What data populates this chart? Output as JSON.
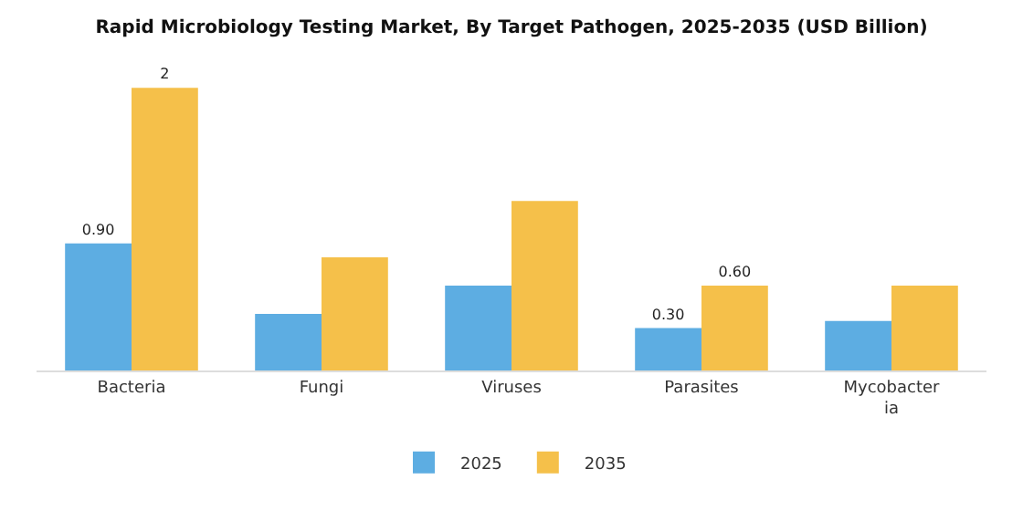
{
  "chart_data": {
    "type": "bar",
    "title": "Rapid Microbiology Testing Market, By Target Pathogen, 2025-2035 (USD Billion)",
    "categories": [
      "Bacteria",
      "Fungi",
      "Viruses",
      "Parasites",
      "Mycobacteria"
    ],
    "series": [
      {
        "name": "2025",
        "color": "#5dade2",
        "values": [
          0.9,
          0.4,
          0.6,
          0.3,
          0.35
        ],
        "value_labels": [
          "0.90",
          null,
          null,
          "0.30",
          null
        ]
      },
      {
        "name": "2035",
        "color": "#f5c04a",
        "values": [
          2,
          0.8,
          1.2,
          0.6,
          0.6
        ],
        "value_labels": [
          "2",
          null,
          null,
          "0.60",
          null
        ]
      }
    ],
    "legend": "bottom"
  }
}
